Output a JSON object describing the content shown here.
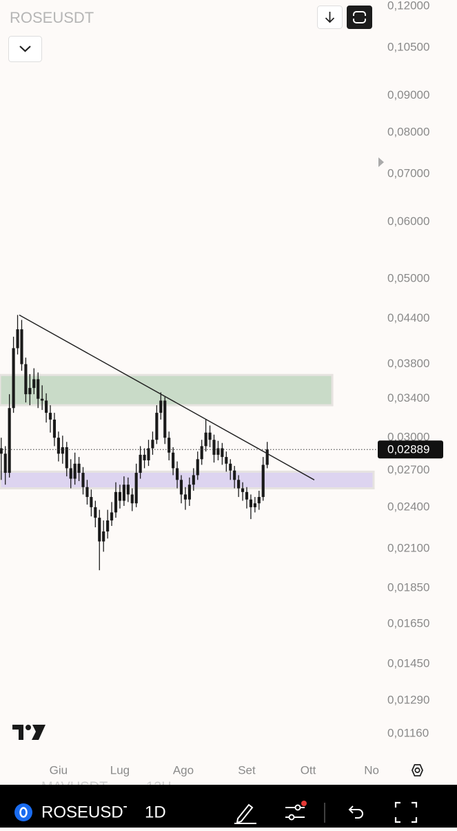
{
  "ui": {
    "symbol": "ROSEUSDT",
    "faded_symbol": "MAVUSDT",
    "faded_interval": "12H",
    "bar_symbol": "ROSEUSDT",
    "bar_interval": "1D"
  },
  "chart_data": {
    "type": "candlestick",
    "title": "ROSEUSDT",
    "x": [
      3,
      5,
      7,
      9,
      11,
      13,
      15,
      17,
      19,
      21,
      23,
      25,
      27,
      29,
      31,
      33,
      35,
      37,
      39,
      41,
      43,
      45,
      47,
      49,
      51,
      53,
      55,
      57,
      59,
      61,
      63,
      65,
      67,
      69,
      71,
      73,
      75,
      77,
      79,
      81,
      83,
      85,
      87,
      89,
      91,
      93,
      95,
      97,
      99,
      101,
      103,
      105,
      107,
      109,
      111,
      113,
      115,
      117,
      119,
      121,
      123,
      125,
      127,
      129,
      131,
      133
    ],
    "open": [
      0.029,
      0.0285,
      0.0268,
      0.033,
      0.04,
      0.0425,
      0.038,
      0.0345,
      0.0352,
      0.0362,
      0.034,
      0.0338,
      0.0325,
      0.0318,
      0.03,
      0.0285,
      0.0291,
      0.0272,
      0.0263,
      0.0276,
      0.0268,
      0.0256,
      0.0248,
      0.024,
      0.0232,
      0.0215,
      0.0222,
      0.023,
      0.0236,
      0.0252,
      0.0245,
      0.0258,
      0.025,
      0.0243,
      0.0268,
      0.0284,
      0.0279,
      0.029,
      0.0298,
      0.0325,
      0.0338,
      0.03,
      0.0286,
      0.0272,
      0.0262,
      0.025,
      0.0246,
      0.0258,
      0.0266,
      0.028,
      0.0292,
      0.0305,
      0.0298,
      0.0284,
      0.029,
      0.0282,
      0.0276,
      0.027,
      0.0262,
      0.0255,
      0.0252,
      0.0246,
      0.024,
      0.0243,
      0.0248,
      0.0275
    ],
    "high": [
      0.03,
      0.0292,
      0.0345,
      0.0415,
      0.0445,
      0.0438,
      0.0388,
      0.0368,
      0.0375,
      0.037,
      0.0355,
      0.0346,
      0.0333,
      0.0325,
      0.0306,
      0.0302,
      0.0296,
      0.028,
      0.0286,
      0.0282,
      0.0273,
      0.0262,
      0.0254,
      0.0245,
      0.0238,
      0.023,
      0.0238,
      0.0244,
      0.026,
      0.0258,
      0.0265,
      0.0264,
      0.0255,
      0.0276,
      0.0292,
      0.029,
      0.0298,
      0.0306,
      0.0333,
      0.0347,
      0.0342,
      0.0306,
      0.0291,
      0.0278,
      0.0266,
      0.0256,
      0.0264,
      0.0272,
      0.0287,
      0.0298,
      0.0318,
      0.0312,
      0.0303,
      0.0297,
      0.0295,
      0.0287,
      0.028,
      0.0274,
      0.0266,
      0.026,
      0.0256,
      0.025,
      0.0248,
      0.0253,
      0.0282,
      0.0296
    ],
    "low": [
      0.0262,
      0.0258,
      0.0264,
      0.0325,
      0.0392,
      0.0372,
      0.0336,
      0.0333,
      0.0345,
      0.033,
      0.0328,
      0.0315,
      0.0305,
      0.0292,
      0.0278,
      0.0276,
      0.0265,
      0.0255,
      0.0258,
      0.0261,
      0.025,
      0.0242,
      0.0233,
      0.0225,
      0.0196,
      0.0208,
      0.0217,
      0.0226,
      0.0232,
      0.0239,
      0.0241,
      0.0244,
      0.0237,
      0.024,
      0.0263,
      0.0272,
      0.0274,
      0.0284,
      0.0294,
      0.0318,
      0.0294,
      0.0279,
      0.0266,
      0.0255,
      0.0243,
      0.0238,
      0.0241,
      0.0253,
      0.0262,
      0.0275,
      0.0287,
      0.0291,
      0.0277,
      0.0279,
      0.0275,
      0.0269,
      0.0262,
      0.0255,
      0.0248,
      0.0245,
      0.0239,
      0.0231,
      0.0236,
      0.0238,
      0.0245,
      0.0272
    ],
    "close": [
      0.0285,
      0.0268,
      0.033,
      0.04,
      0.0425,
      0.038,
      0.0345,
      0.0352,
      0.0362,
      0.034,
      0.0338,
      0.0325,
      0.0318,
      0.03,
      0.0285,
      0.0291,
      0.0272,
      0.0263,
      0.0276,
      0.0268,
      0.0256,
      0.0248,
      0.024,
      0.0232,
      0.0215,
      0.0222,
      0.023,
      0.0236,
      0.0252,
      0.0245,
      0.0258,
      0.025,
      0.0243,
      0.0268,
      0.0284,
      0.0279,
      0.029,
      0.0298,
      0.0325,
      0.0338,
      0.03,
      0.0286,
      0.0272,
      0.0262,
      0.025,
      0.0246,
      0.0258,
      0.0266,
      0.028,
      0.0292,
      0.0305,
      0.0298,
      0.0284,
      0.029,
      0.0282,
      0.0276,
      0.027,
      0.0262,
      0.0255,
      0.0252,
      0.0246,
      0.024,
      0.0243,
      0.0248,
      0.0275,
      0.02889
    ],
    "color": "#1a1a1a",
    "xlim": [
      2.4,
      186
    ],
    "xticks": [
      {
        "value": 31,
        "label": "Giu"
      },
      {
        "value": 61,
        "label": "Lug"
      },
      {
        "value": 92,
        "label": "Ago"
      },
      {
        "value": 123,
        "label": "Set"
      },
      {
        "value": 153,
        "label": "Ott"
      },
      {
        "value": 184,
        "label": "No"
      }
    ],
    "ylim": [
      0.0108,
      0.1224
    ],
    "log_scale": true,
    "yticks": [
      {
        "value": 0.12,
        "label": "0,12000"
      },
      {
        "value": 0.105,
        "label": "0,10500"
      },
      {
        "value": 0.09,
        "label": "0,09000"
      },
      {
        "value": 0.08,
        "label": "0,08000"
      },
      {
        "value": 0.07,
        "label": "0,07000"
      },
      {
        "value": 0.06,
        "label": "0,06000"
      },
      {
        "value": 0.05,
        "label": "0,05000"
      },
      {
        "value": 0.044,
        "label": "0,04400"
      },
      {
        "value": 0.038,
        "label": "0,03800"
      },
      {
        "value": 0.034,
        "label": "0,03400"
      },
      {
        "value": 0.03,
        "label": "0,03000"
      },
      {
        "value": 0.027,
        "label": "0,02700"
      },
      {
        "value": 0.024,
        "label": "0,02400"
      },
      {
        "value": 0.021,
        "label": "0,02100"
      },
      {
        "value": 0.0185,
        "label": "0,01850"
      },
      {
        "value": 0.0165,
        "label": "0,01650"
      },
      {
        "value": 0.0145,
        "label": "0,01450"
      },
      {
        "value": 0.0129,
        "label": "0,01290"
      },
      {
        "value": 0.0116,
        "label": "0,01160"
      }
    ],
    "zones": [
      {
        "color": "#c9dbc8",
        "x": [
          2.4,
          164.8
        ],
        "y": [
          0.0333,
          0.0367
        ]
      },
      {
        "color": "#ddd4f0",
        "x": [
          2.4,
          185
        ],
        "y": [
          0.0255,
          0.0269
        ]
      }
    ],
    "trendline": {
      "x": [
        11.8,
        156
      ],
      "y": [
        0.0445,
        0.0262
      ],
      "color": "#222222"
    },
    "last_price": {
      "value": 0.02889,
      "label": "0,02889"
    }
  }
}
